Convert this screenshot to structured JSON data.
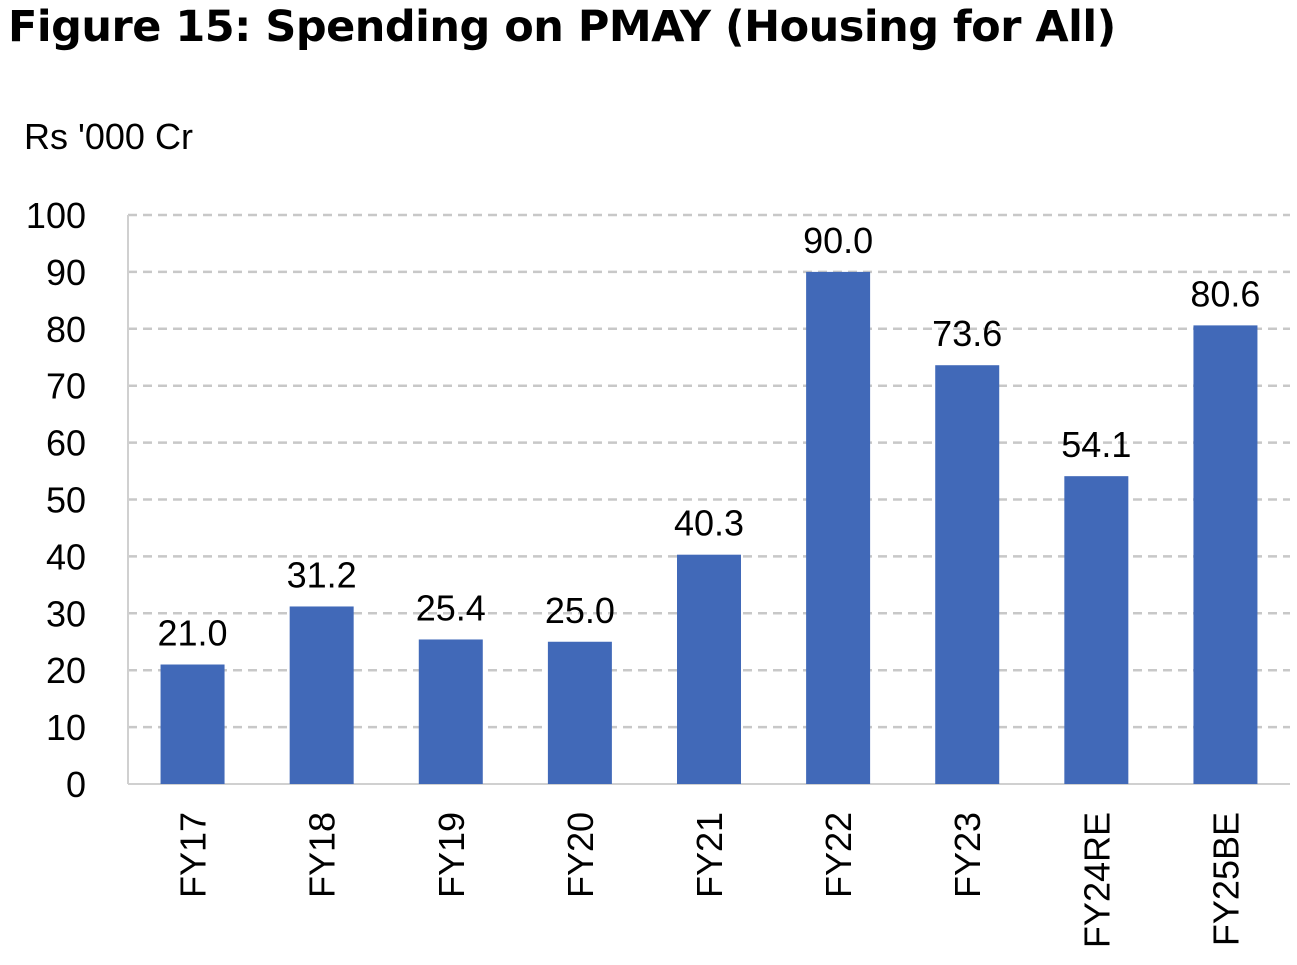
{
  "title": "Figure 15: Spending on PMAY (Housing for All)",
  "unit_label": "Rs '000 Cr",
  "chart_data": {
    "type": "bar",
    "title": "Figure 15: Spending on PMAY (Housing for All)",
    "ylabel": "Rs '000 Cr",
    "xlabel": "",
    "categories": [
      "FY17",
      "FY18",
      "FY19",
      "FY20",
      "FY21",
      "FY22",
      "FY23",
      "FY24RE",
      "FY25BE"
    ],
    "values": [
      21.0,
      31.2,
      25.4,
      25.0,
      40.3,
      90.0,
      73.6,
      54.1,
      80.6
    ],
    "data_labels": [
      "21.0",
      "31.2",
      "25.4",
      "25.0",
      "40.3",
      "90.0",
      "73.6",
      "54.1",
      "80.6"
    ],
    "ylim": [
      0,
      100
    ],
    "yticks": [
      0,
      10,
      20,
      30,
      40,
      50,
      60,
      70,
      80,
      90,
      100
    ],
    "grid": true,
    "bar_color": "#4169B8",
    "grid_color": "#c8c8c8",
    "x_tick_rotation": "vertical"
  }
}
